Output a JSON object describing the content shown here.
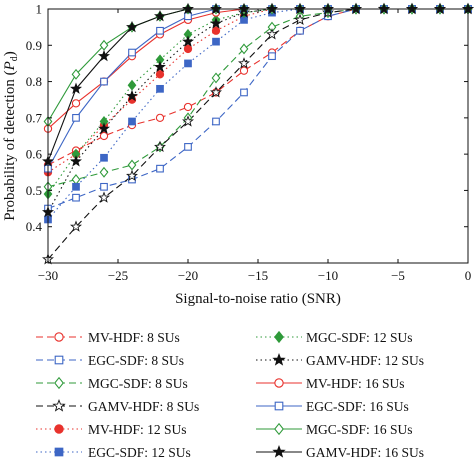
{
  "chart_data": {
    "type": "line",
    "xlabel": "Signal-to-noise ratio (SNR)",
    "ylabel_main": "Probability of detection (",
    "ylabel_sym": "P",
    "ylabel_sub": "d",
    "ylabel_close": ")",
    "xlim": [
      -30,
      0
    ],
    "ylim": [
      0.3,
      1.0
    ],
    "xticks": [
      -30,
      -25,
      -20,
      -15,
      -10,
      -5,
      0
    ],
    "xtick_labels": [
      "−30",
      "−25",
      "−20",
      "−15",
      "−10",
      "−5",
      "0"
    ],
    "yticks": [
      0.4,
      0.5,
      0.6,
      0.7,
      0.8,
      0.9,
      1.0
    ],
    "ytick_labels": [
      "0.4",
      "0.5",
      "0.6",
      "0.7",
      "0.8",
      "0.9",
      "1"
    ],
    "grid": false,
    "legend_position": "below",
    "series": [
      {
        "name": "MV-HDF: 8 SUs",
        "color": "#e8322d",
        "dash": "7,4",
        "marker": "circle-open",
        "x": [
          -30,
          -28,
          -26,
          -24,
          -22,
          -20,
          -18,
          -16,
          -14,
          -12,
          -10,
          -8,
          -6,
          -4,
          -2,
          0
        ],
        "y": [
          0.57,
          0.61,
          0.65,
          0.68,
          0.7,
          0.73,
          0.77,
          0.83,
          0.88,
          0.94,
          0.98,
          1.0,
          1.0,
          1.0,
          1.0,
          1.0
        ]
      },
      {
        "name": "EGC-SDF: 8 SUs",
        "color": "#3d66c5",
        "dash": "7,4",
        "marker": "square-open",
        "x": [
          -30,
          -28,
          -26,
          -24,
          -22,
          -20,
          -18,
          -16,
          -14,
          -12,
          -10,
          -8,
          -6,
          -4,
          -2,
          0
        ],
        "y": [
          0.45,
          0.48,
          0.51,
          0.53,
          0.56,
          0.62,
          0.69,
          0.77,
          0.87,
          0.94,
          0.98,
          1.0,
          1.0,
          1.0,
          1.0,
          1.0
        ]
      },
      {
        "name": "MGC-SDF: 8 SUs",
        "color": "#2f9a3a",
        "dash": "7,4",
        "marker": "diamond-open",
        "x": [
          -30,
          -28,
          -26,
          -24,
          -22,
          -20,
          -18,
          -16,
          -14,
          -12,
          -10,
          -8,
          -6,
          -4,
          -2,
          0
        ],
        "y": [
          0.51,
          0.53,
          0.55,
          0.57,
          0.62,
          0.7,
          0.81,
          0.89,
          0.95,
          0.98,
          0.99,
          1.0,
          1.0,
          1.0,
          1.0,
          1.0
        ]
      },
      {
        "name": "GAMV-HDF: 8 SUs",
        "color": "#111111",
        "dash": "7,4",
        "marker": "star-open",
        "x": [
          -30,
          -28,
          -26,
          -24,
          -22,
          -20,
          -18,
          -16,
          -14,
          -12,
          -10,
          -8,
          -6,
          -4,
          -2,
          0
        ],
        "y": [
          0.31,
          0.4,
          0.48,
          0.54,
          0.62,
          0.69,
          0.77,
          0.85,
          0.93,
          0.97,
          0.99,
          1.0,
          1.0,
          1.0,
          1.0,
          1.0
        ]
      },
      {
        "name": "MV-HDF: 12 SUs",
        "color": "#e8322d",
        "dash": "1.5,3",
        "marker": "circle-filled",
        "x": [
          -30,
          -28,
          -26,
          -24,
          -22,
          -20,
          -18,
          -16,
          -14,
          -12,
          -10,
          -8,
          -6,
          -4,
          -2,
          0
        ],
        "y": [
          0.55,
          0.6,
          0.68,
          0.75,
          0.82,
          0.89,
          0.94,
          0.98,
          1.0,
          1.0,
          1.0,
          1.0,
          1.0,
          1.0,
          1.0,
          1.0
        ]
      },
      {
        "name": "EGC-SDF: 12 SUs",
        "color": "#3d66c5",
        "dash": "1.5,3",
        "marker": "square-filled",
        "x": [
          -30,
          -28,
          -26,
          -24,
          -22,
          -20,
          -18,
          -16,
          -14,
          -12,
          -10,
          -8,
          -6,
          -4,
          -2,
          0
        ],
        "y": [
          0.42,
          0.51,
          0.59,
          0.69,
          0.78,
          0.85,
          0.91,
          0.97,
          0.99,
          1.0,
          1.0,
          1.0,
          1.0,
          1.0,
          1.0,
          1.0
        ]
      },
      {
        "name": "MGC-SDF: 12 SUs",
        "color": "#2f9a3a",
        "dash": "1.5,3",
        "marker": "diamond-filled",
        "x": [
          -30,
          -28,
          -26,
          -24,
          -22,
          -20,
          -18,
          -16,
          -14,
          -12,
          -10,
          -8,
          -6,
          -4,
          -2,
          0
        ],
        "y": [
          0.49,
          0.6,
          0.69,
          0.79,
          0.86,
          0.93,
          0.97,
          0.99,
          1.0,
          1.0,
          1.0,
          1.0,
          1.0,
          1.0,
          1.0,
          1.0
        ]
      },
      {
        "name": "GAMV-HDF: 12 SUs",
        "color": "#111111",
        "dash": "1.5,3",
        "marker": "star-filled",
        "x": [
          -30,
          -28,
          -26,
          -24,
          -22,
          -20,
          -18,
          -16,
          -14,
          -12,
          -10,
          -8,
          -6,
          -4,
          -2,
          0
        ],
        "y": [
          0.44,
          0.58,
          0.67,
          0.76,
          0.84,
          0.91,
          0.96,
          0.99,
          1.0,
          1.0,
          1.0,
          1.0,
          1.0,
          1.0,
          1.0,
          1.0
        ]
      },
      {
        "name": "MV-HDF: 16 SUs",
        "color": "#e8322d",
        "dash": "",
        "marker": "circle-open",
        "x": [
          -30,
          -28,
          -26,
          -24,
          -22,
          -20,
          -18,
          -16,
          -14,
          -12,
          -10,
          -8,
          -6,
          -4,
          -2,
          0
        ],
        "y": [
          0.67,
          0.74,
          0.8,
          0.87,
          0.93,
          0.97,
          0.99,
          1.0,
          1.0,
          1.0,
          1.0,
          1.0,
          1.0,
          1.0,
          1.0,
          1.0
        ]
      },
      {
        "name": "EGC-SDF: 16 SUs",
        "color": "#3d66c5",
        "dash": "",
        "marker": "square-open",
        "x": [
          -30,
          -28,
          -26,
          -24,
          -22,
          -20,
          -18,
          -16,
          -14,
          -12,
          -10,
          -8,
          -6,
          -4,
          -2,
          0
        ],
        "y": [
          0.56,
          0.7,
          0.8,
          0.88,
          0.94,
          0.98,
          1.0,
          1.0,
          1.0,
          1.0,
          1.0,
          1.0,
          1.0,
          1.0,
          1.0,
          1.0
        ]
      },
      {
        "name": "MGC-SDF: 16 SUs",
        "color": "#2f9a3a",
        "dash": "",
        "marker": "diamond-open",
        "x": [
          -30,
          -28,
          -26,
          -24,
          -22,
          -20,
          -18,
          -16,
          -14,
          -12,
          -10,
          -8,
          -6,
          -4,
          -2,
          0
        ],
        "y": [
          0.69,
          0.82,
          0.9,
          0.95,
          0.98,
          1.0,
          1.0,
          1.0,
          1.0,
          1.0,
          1.0,
          1.0,
          1.0,
          1.0,
          1.0,
          1.0
        ]
      },
      {
        "name": "GAMV-HDF: 16 SUs",
        "color": "#111111",
        "dash": "",
        "marker": "star-filled",
        "x": [
          -30,
          -28,
          -26,
          -24,
          -22,
          -20,
          -18,
          -16,
          -14,
          -12,
          -10,
          -8,
          -6,
          -4,
          -2,
          0
        ],
        "y": [
          0.58,
          0.78,
          0.87,
          0.95,
          0.98,
          1.0,
          1.0,
          1.0,
          1.0,
          1.0,
          1.0,
          1.0,
          1.0,
          1.0,
          1.0,
          1.0
        ]
      }
    ]
  }
}
